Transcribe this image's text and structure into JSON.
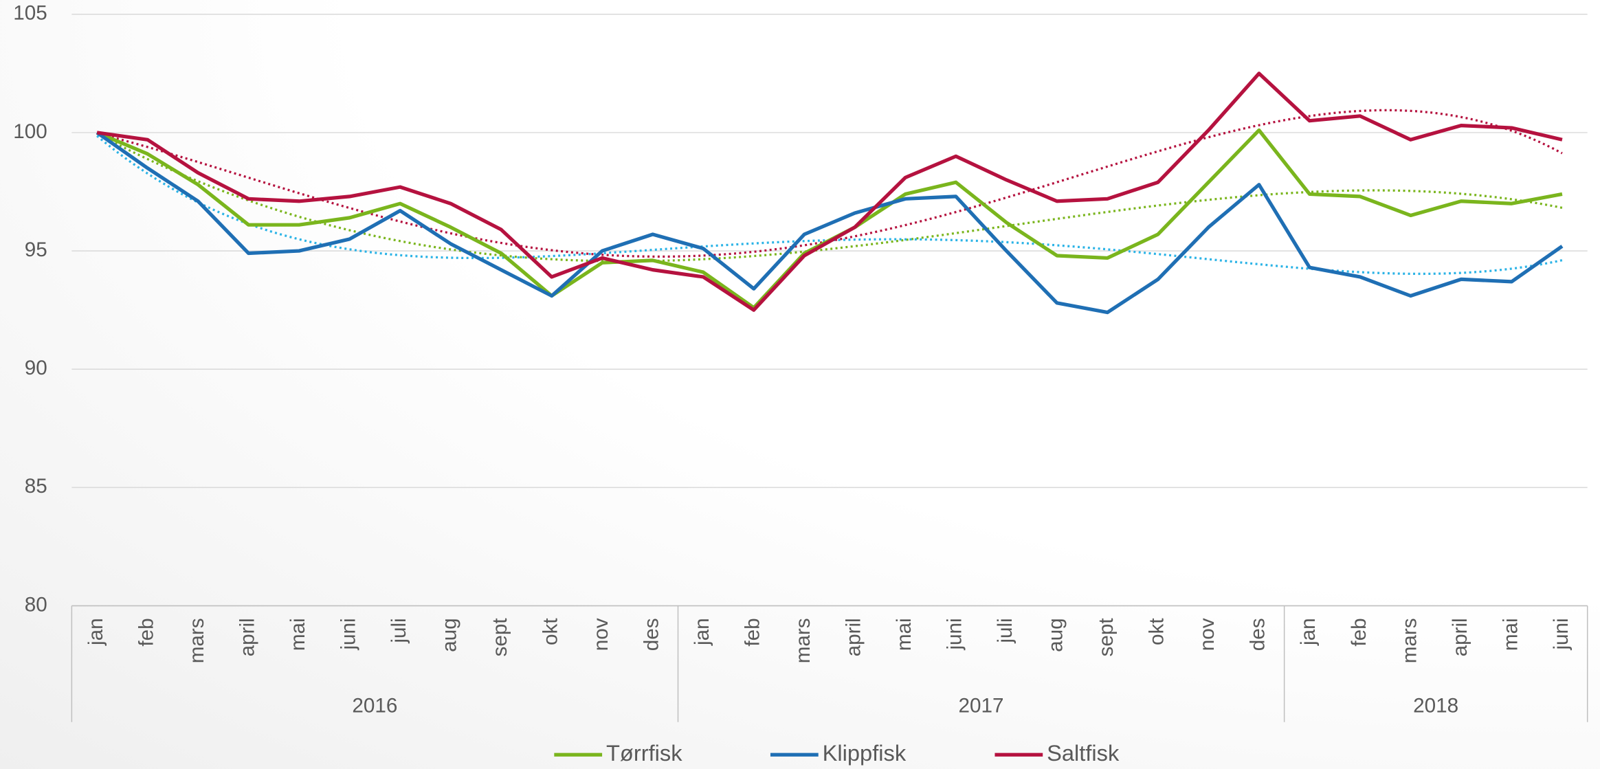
{
  "chart_data": {
    "type": "line",
    "category_groups": [
      {
        "name": "2016",
        "categories": [
          "jan",
          "feb",
          "mars",
          "april",
          "mai",
          "juni",
          "juli",
          "aug",
          "sept",
          "okt",
          "nov",
          "des"
        ]
      },
      {
        "name": "2017",
        "categories": [
          "jan",
          "feb",
          "mars",
          "april",
          "mai",
          "juni",
          "juli",
          "aug",
          "sept",
          "okt",
          "nov",
          "des"
        ]
      },
      {
        "name": "2018",
        "categories": [
          "jan",
          "feb",
          "mars",
          "april",
          "mai",
          "juni"
        ]
      }
    ],
    "series": [
      {
        "name": "Tørrfisk",
        "color": "#7ab51d",
        "trendline_color": "#7ab51d",
        "values": [
          100,
          99.1,
          97.8,
          96.1,
          96.1,
          96.4,
          97.0,
          96.0,
          94.9,
          93.1,
          94.5,
          94.6,
          94.1,
          92.6,
          94.9,
          96.0,
          97.4,
          97.9,
          96.2,
          94.8,
          94.7,
          95.7,
          97.9,
          100.1,
          97.4,
          97.3,
          96.5,
          97.1,
          97.0,
          97.4
        ]
      },
      {
        "name": "Klippfisk",
        "color": "#1f6fb4",
        "trendline_color": "#2bb3e6",
        "values": [
          100,
          98.5,
          97.1,
          94.9,
          95.0,
          95.5,
          96.7,
          95.3,
          94.2,
          93.1,
          95.0,
          95.7,
          95.1,
          93.4,
          95.7,
          96.6,
          97.2,
          97.3,
          95.0,
          92.8,
          92.4,
          93.8,
          96.0,
          97.8,
          94.3,
          93.9,
          93.1,
          93.8,
          93.7,
          95.2
        ]
      },
      {
        "name": "Saltfisk",
        "color": "#b5123f",
        "trendline_color": "#b5123f",
        "values": [
          100,
          99.7,
          98.3,
          97.2,
          97.1,
          97.3,
          97.7,
          97.0,
          95.9,
          93.9,
          94.7,
          94.2,
          93.9,
          92.5,
          94.8,
          96.0,
          98.1,
          99.0,
          98.0,
          97.1,
          97.2,
          97.9,
          100.1,
          102.5,
          100.5,
          100.7,
          99.7,
          100.3,
          100.2,
          99.7
        ]
      }
    ],
    "trendline": "polynomial",
    "trendline_order": 4,
    "ylim": [
      80,
      105
    ],
    "yticks": [
      80,
      85,
      90,
      95,
      100,
      105
    ],
    "grid": true,
    "legend": "bottom"
  }
}
